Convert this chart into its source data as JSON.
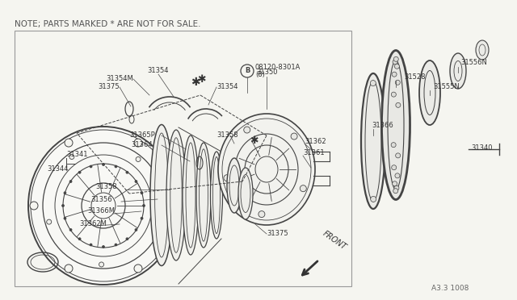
{
  "bg_color": "#f5f5f0",
  "line_color": "#444444",
  "text_color": "#333333",
  "note_text": "NOTE; PARTS MARKED × ARE NOT FOR SALE.",
  "note_text2": "NOTE; PARTS MARKED * ARE NOT FOR SALE.",
  "figure_code": "A3.3 1008",
  "border_lw": 1.0,
  "label_fontsize": 6.0,
  "note_fontsize": 7.5
}
